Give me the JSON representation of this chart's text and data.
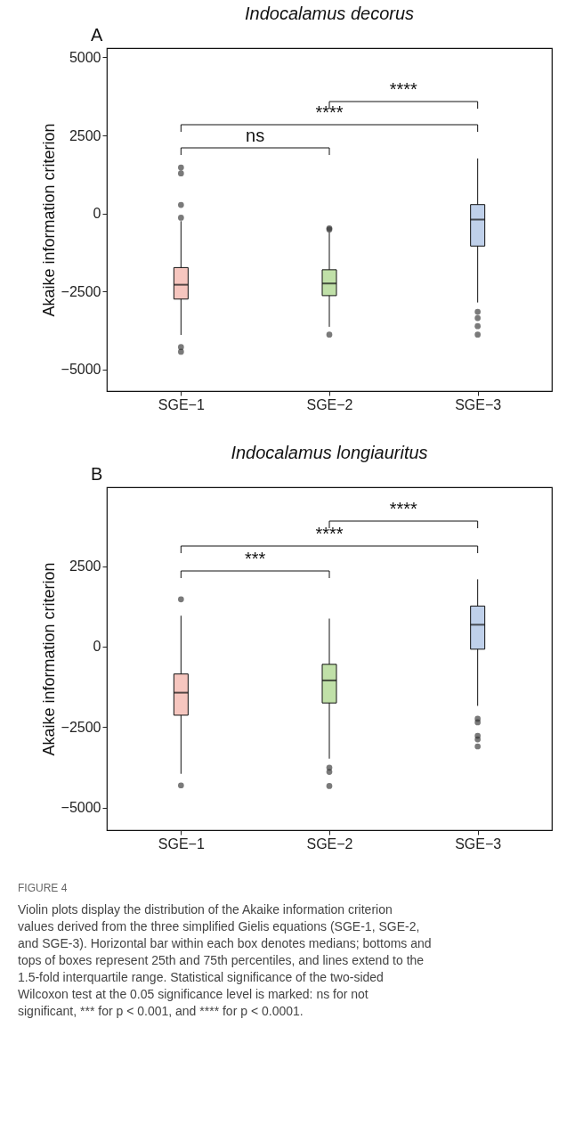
{
  "chart_data": [
    {
      "type": "box",
      "title": "Indocalamus decorus",
      "ylabel": "Akaike information criterion",
      "categories": [
        "SGE−1",
        "SGE−2",
        "SGE−3"
      ],
      "colors": [
        "#f6c6bf",
        "#c0e0a8",
        "#bfd0ea"
      ],
      "boxes": [
        {
          "low": -3900,
          "q1": -2750,
          "median": -2290,
          "q3": -1740,
          "high": -250,
          "outliers": [
            1470,
            1280,
            270,
            -140,
            -4290,
            -4440
          ]
        },
        {
          "low": -3640,
          "q1": -2640,
          "median": -2250,
          "q3": -1810,
          "high": -600,
          "outliers": [
            -480,
            -520,
            -3890
          ]
        },
        {
          "low": -2860,
          "q1": -1050,
          "median": -200,
          "q3": 280,
          "high": 1760,
          "outliers": [
            -3160,
            -3360,
            -3620,
            -3890
          ]
        }
      ],
      "ylim": [
        -5700,
        5300
      ],
      "yticks": [
        -5000,
        -2500,
        0,
        2500,
        5000
      ],
      "grid": false,
      "annotations": [
        "A",
        "ns",
        "****",
        "****"
      ]
    },
    {
      "type": "box",
      "title": "Indocalamus longiauritus",
      "ylabel": "Akaike information criterion",
      "categories": [
        "SGE−1",
        "SGE−2",
        "SGE−3"
      ],
      "colors": [
        "#f6c6bf",
        "#c0e0a8",
        "#bfd0ea"
      ],
      "boxes": [
        {
          "low": -3950,
          "q1": -2130,
          "median": -1430,
          "q3": -850,
          "high": 960,
          "outliers": [
            1470,
            -4310
          ]
        },
        {
          "low": -3480,
          "q1": -1750,
          "median": -1050,
          "q3": -550,
          "high": 870,
          "outliers": [
            -3760,
            -3890,
            -4330
          ]
        },
        {
          "low": -1840,
          "q1": -80,
          "median": 680,
          "q3": 1260,
          "high": 2090,
          "outliers": [
            -2240,
            -2350,
            -2770,
            -2880,
            -3100
          ]
        }
      ],
      "ylim": [
        -5700,
        4950
      ],
      "yticks": [
        -5000,
        -2500,
        0,
        2500
      ],
      "grid": false,
      "annotations": [
        "B",
        "***",
        "****",
        "****",
        "FIGURE 4",
        "Violin plots display the distribution of the Akaike information criterion values derived from the three simplified Gielis equations (SGE-1, SGE-2, and SGE-3). Horizontal bar within each box denotes medians; bottoms and tops of boxes represent 25th and 75th percentiles, and lines extend to the 1.5-fold interquartile range. Statistical significance of the two-sided Wilcoxon test at the 0.05 significance level is marked: ns for not significant, *** for p < 0.001, and **** for p < 0.0001."
      ]
    }
  ]
}
